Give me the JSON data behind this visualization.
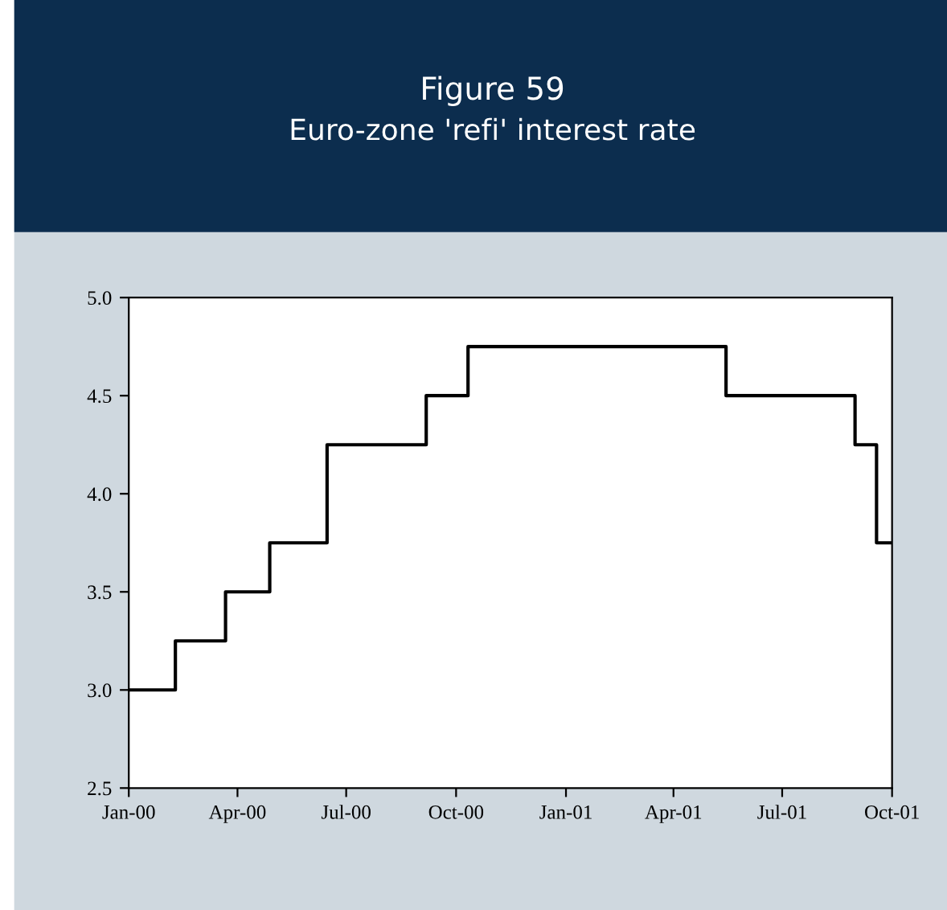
{
  "chart_data": {
    "type": "step",
    "title": "Figure 59",
    "subtitle": "Euro-zone 'refi' interest rate",
    "x": [
      "2000-01-01",
      "2000-02-09",
      "2000-03-22",
      "2000-04-28",
      "2000-06-15",
      "2000-09-06",
      "2000-10-11",
      "2001-05-15",
      "2001-08-31",
      "2001-09-18",
      "2001-10-01"
    ],
    "series": [
      {
        "color": "#000000",
        "values": [
          3.0,
          3.25,
          3.5,
          3.75,
          4.25,
          4.5,
          4.75,
          4.5,
          4.25,
          3.75,
          3.75
        ]
      }
    ],
    "xlim": [
      "2000-01-01",
      "2001-10-01"
    ],
    "xticks": [
      {
        "value": "2000-01-01",
        "label": "Jan-00"
      },
      {
        "value": "2000-04-01",
        "label": "Apr-00"
      },
      {
        "value": "2000-07-01",
        "label": "Jul-00"
      },
      {
        "value": "2000-10-01",
        "label": "Oct-00"
      },
      {
        "value": "2001-01-01",
        "label": "Jan-01"
      },
      {
        "value": "2001-04-01",
        "label": "Apr-01"
      },
      {
        "value": "2001-07-01",
        "label": "Jul-01"
      },
      {
        "value": "2001-10-01",
        "label": "Oct-01"
      }
    ],
    "ylim": [
      2.5,
      5.0
    ],
    "yticks": [
      {
        "value": 2.5,
        "label": "2.5"
      },
      {
        "value": 3.0,
        "label": "3.0"
      },
      {
        "value": 3.5,
        "label": "3.5"
      },
      {
        "value": 4.0,
        "label": "4.0"
      },
      {
        "value": 4.5,
        "label": "4.5"
      },
      {
        "value": 5.0,
        "label": "5.0"
      }
    ],
    "grid": false,
    "legend": false,
    "marker": "none",
    "line_style": "solid"
  }
}
